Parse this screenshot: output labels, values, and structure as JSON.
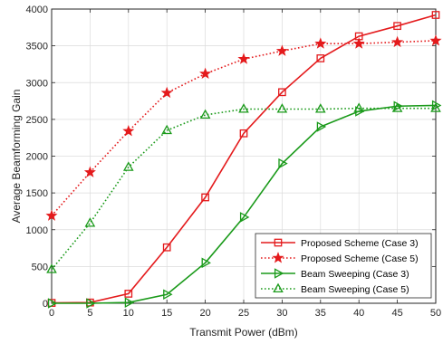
{
  "chart_data": {
    "type": "line",
    "title": "",
    "xlabel": "Transmit Power (dBm)",
    "ylabel": "Average Beamforming Gain",
    "x": [
      0,
      5,
      10,
      15,
      20,
      25,
      30,
      35,
      40,
      45,
      50
    ],
    "xlim": [
      0,
      50
    ],
    "ylim": [
      0,
      4000
    ],
    "xticks": [
      0,
      5,
      10,
      15,
      20,
      25,
      30,
      35,
      40,
      45,
      50
    ],
    "yticks": [
      0,
      500,
      1000,
      1500,
      2000,
      2500,
      3000,
      3500,
      4000
    ],
    "grid": true,
    "legend_position": "bottom-right",
    "series": [
      {
        "name": "Proposed Scheme (Case 3)",
        "color": "#e41a1c",
        "line_style": "solid",
        "marker": "square",
        "values": [
          5,
          10,
          130,
          760,
          1440,
          2310,
          2870,
          3330,
          3630,
          3770,
          3920
        ]
      },
      {
        "name": "Proposed Scheme (Case 5)",
        "color": "#e41a1c",
        "line_style": "dotted",
        "marker": "star",
        "values": [
          1190,
          1780,
          2340,
          2860,
          3120,
          3320,
          3430,
          3530,
          3530,
          3550,
          3570
        ]
      },
      {
        "name": "Beam Sweeping (Case 3)",
        "color": "#1a9a1a",
        "line_style": "solid",
        "marker": "triangle-right",
        "values": [
          0,
          0,
          10,
          120,
          550,
          1170,
          1900,
          2400,
          2610,
          2680,
          2690
        ]
      },
      {
        "name": "Beam Sweeping (Case 5)",
        "color": "#1a9a1a",
        "line_style": "dotted",
        "marker": "triangle-up",
        "values": [
          460,
          1090,
          1850,
          2350,
          2560,
          2640,
          2640,
          2640,
          2650,
          2650,
          2650
        ]
      }
    ]
  }
}
